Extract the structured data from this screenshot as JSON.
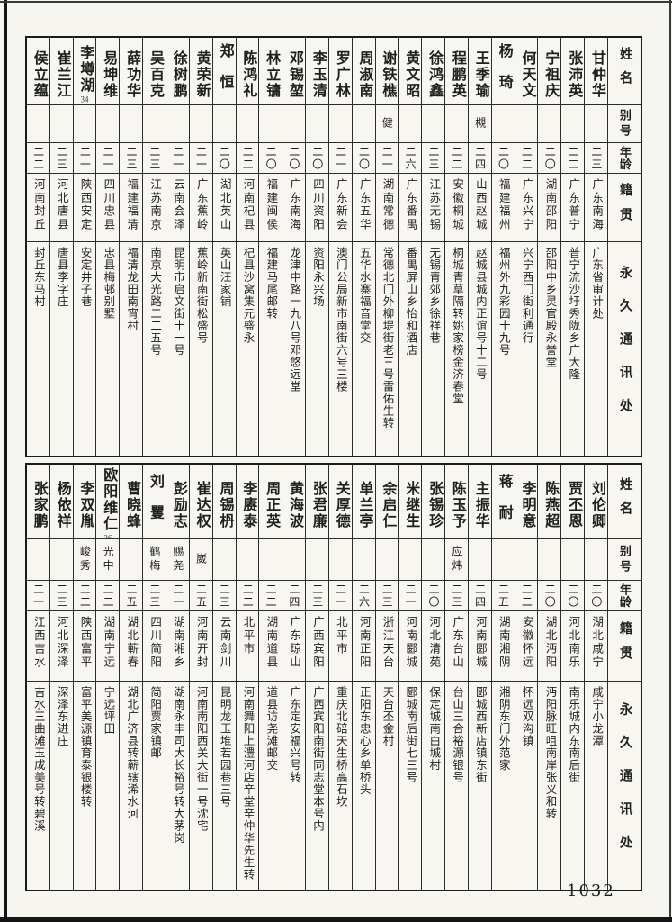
{
  "page": {
    "number": "1032"
  },
  "headers": {
    "name": "姓名",
    "alias": "别号",
    "age": "年龄",
    "native": "籍贯",
    "address": "永久通讯处"
  },
  "tables": [
    {
      "entries": [
        {
          "name": "甘仲华",
          "alias": "",
          "age": "二三",
          "native": "广东南海",
          "address": "广东省审计处"
        },
        {
          "name": "张沛英",
          "alias": "",
          "age": "二二",
          "native": "广东普宁",
          "address": "普宁流沙圩秀陇乡广大隆"
        },
        {
          "name": "宁祖庆",
          "alias": "",
          "age": "二〇",
          "native": "湖南邵阳",
          "address": "邵阳中乡灵官殿永誉堂"
        },
        {
          "name": "何天文",
          "alias": "",
          "age": "二二",
          "native": "广东兴宁",
          "address": "兴宁西门街利通行"
        },
        {
          "name": "杨琦",
          "alias": "",
          "age": "二〇",
          "native": "福建福州",
          "address": "福州外九彩园十九号"
        },
        {
          "name": "王季瑜",
          "alias": "槻",
          "age": "二四",
          "native": "山西赵城",
          "address": "赵城县城内正谊号十二号"
        },
        {
          "name": "程鹏英",
          "alias": "",
          "age": "二二",
          "native": "安徽桐城",
          "address": "桐城青草隔转姚家榜金济春堂"
        },
        {
          "name": "徐鸿鑫",
          "alias": "",
          "age": "二三",
          "native": "江苏无锡",
          "address": "无锡青郊乡徐祥巷"
        },
        {
          "name": "黄文昭",
          "alias": "",
          "age": "二六",
          "native": "广东番禺",
          "address": "番禺屏山乡怡和酒店"
        },
        {
          "name": "谢铁樵",
          "alias": "健",
          "age": "二一",
          "native": "湖南常德",
          "address": "常德北门外柳堤街老三号雷佑生转"
        },
        {
          "name": "周淑南",
          "alias": "",
          "age": "二〇",
          "native": "广东五华",
          "address": "五华水寨福音堂交"
        },
        {
          "name": "罗广林",
          "alias": "",
          "age": "二一",
          "native": "广东新会",
          "address": "澳门公局新市南街六号三楼"
        },
        {
          "name": "李玉清",
          "alias": "",
          "age": "二〇",
          "native": "四川资阳",
          "address": "资阳永兴场"
        },
        {
          "name": "邓锡堃",
          "alias": "",
          "age": "二〇",
          "native": "广东南海",
          "address": "龙津中路一九八号邓悠远堂"
        },
        {
          "name": "林立镛",
          "alias": "",
          "age": "二〇",
          "native": "福建闽侯",
          "address": "福建马尾邮转"
        },
        {
          "name": "陈鸿礼",
          "alias": "",
          "age": "二二",
          "native": "河南杞县",
          "address": "杞县沙窝集元盛永"
        },
        {
          "name": "郑恒",
          "alias": "",
          "age": "二〇",
          "native": "湖北英山",
          "address": "英山汪家铺"
        },
        {
          "name": "黄荣新",
          "alias": "",
          "age": "二一",
          "native": "广东蕉岭",
          "address": "蕉岭新南街松盛号"
        },
        {
          "name": "徐树鹏",
          "alias": "",
          "age": "二一",
          "native": "云南会泽",
          "address": "昆明市启文街十一号"
        },
        {
          "name": "吴百克",
          "alias": "",
          "age": "二三",
          "native": "江苏南京",
          "address": "南京大光路二二五号"
        },
        {
          "name": "薛功华",
          "alias": "",
          "age": "二三",
          "native": "福建福清",
          "address": "福清龙田南宵村"
        },
        {
          "name": "易坤维",
          "alias": "",
          "age": "二一",
          "native": "四川忠县",
          "address": "忠县梅邨别墅"
        },
        {
          "name": "李墫湖",
          "footnote": "34",
          "alias": "",
          "age": "二一",
          "native": "陕西安定",
          "address": "安定井子巷"
        },
        {
          "name": "崔兰江",
          "alias": "",
          "age": "二三",
          "native": "河北唐县",
          "address": "唐县李字庄"
        },
        {
          "name": "侯立蕴",
          "alias": "",
          "age": "二二",
          "native": "河南封丘",
          "address": "封丘东马村"
        }
      ]
    },
    {
      "entries": [
        {
          "name": "刘伦卿",
          "alias": "",
          "age": "二〇",
          "native": "湖北咸宁",
          "address": "咸宁小龙潭"
        },
        {
          "name": "贾丕恩",
          "alias": "",
          "age": "二〇",
          "native": "河北南乐",
          "address": "南乐城内东南后街"
        },
        {
          "name": "陈燕超",
          "alias": "",
          "age": "二〇",
          "native": "湖北沔阳",
          "address": "沔阳脉旺咀南岸张义和转"
        },
        {
          "name": "李明意",
          "alias": "",
          "age": "二二",
          "native": "安徽怀远",
          "address": "怀远双沟镇"
        },
        {
          "name": "蒋耐",
          "alias": "",
          "age": "二五",
          "native": "湖南湘阴",
          "address": "湘阴东门外范家"
        },
        {
          "name": "主振华",
          "alias": "",
          "age": "二四",
          "native": "河南郾城",
          "address": "郾城西新店镇东街"
        },
        {
          "name": "陈玉予",
          "alias": "应炜",
          "age": "二三",
          "native": "广东台山",
          "address": "台山三合裕源银号"
        },
        {
          "name": "张锡珍",
          "alias": "",
          "age": "二〇",
          "native": "河北清苑",
          "address": "保定城南白城村"
        },
        {
          "name": "米继生",
          "alias": "",
          "age": "二一",
          "native": "河南郾城",
          "address": "郾城南后街七三号"
        },
        {
          "name": "余启仁",
          "alias": "",
          "age": "二三",
          "native": "浙江天台",
          "address": "天台丕金村"
        },
        {
          "name": "单兰亭",
          "alias": "",
          "age": "二六",
          "native": "河南正阳",
          "address": "正阳东忠心乡单桥头"
        },
        {
          "name": "关厚德",
          "alias": "",
          "age": "二一",
          "native": "北平市",
          "address": "重庆北碚天生桥高石坎"
        },
        {
          "name": "张君廉",
          "alias": "",
          "age": "二三",
          "native": "广西宾阳",
          "address": "广西宾阳南街同志堂本号内"
        },
        {
          "name": "黄海波",
          "alias": "",
          "age": "二四",
          "native": "广东琼山",
          "address": "广东定安福兴号转"
        },
        {
          "name": "周正英",
          "alias": "",
          "age": "二二",
          "native": "湖南道县",
          "address": "道县访尧滩邮交"
        },
        {
          "name": "李赓泰",
          "alias": "",
          "age": "二二",
          "native": "北平市",
          "address": "河南舞阳上澧河店辛堂辛仲华先生转"
        },
        {
          "name": "周锡枬",
          "alias": "",
          "age": "二三",
          "native": "云南剑川",
          "address": "昆明龙玉堆若园巷三号"
        },
        {
          "name": "崔达权",
          "alias": "崴",
          "age": "二五",
          "native": "河南开封",
          "address": "河南南阳西关大街一号沈宅"
        },
        {
          "name": "彭励志",
          "alias": "赐尧",
          "age": "二一",
          "native": "湖南湘乡",
          "address": "湖南永丰司大长裕号转大茅岗"
        },
        {
          "name": "刘矍",
          "alias": "鹤梅",
          "age": "二三",
          "native": "四川简阳",
          "address": "简阳贾家镇邮"
        },
        {
          "name": "曹晓蜂",
          "alias": "",
          "age": "二五",
          "native": "湖北蕲春",
          "address": "湖北广济县转蕲辖浠水河"
        },
        {
          "name": "欧阳维仁",
          "footnote": "26",
          "alias": "光中",
          "age": "二二",
          "native": "湖南宁远",
          "address": "宁远坪田"
        },
        {
          "name": "李双胤",
          "alias": "峻秀",
          "age": "二二",
          "native": "陕西富平",
          "address": "富平美源镇育泰银楼转"
        },
        {
          "name": "杨依祥",
          "alias": "",
          "age": "二三",
          "native": "河北深泽",
          "address": "深泽东进庄"
        },
        {
          "name": "张家鹏",
          "alias": "",
          "age": "二一",
          "native": "江西吉水",
          "address": "吉水三曲滩玉成美号转碧溪"
        }
      ]
    }
  ]
}
